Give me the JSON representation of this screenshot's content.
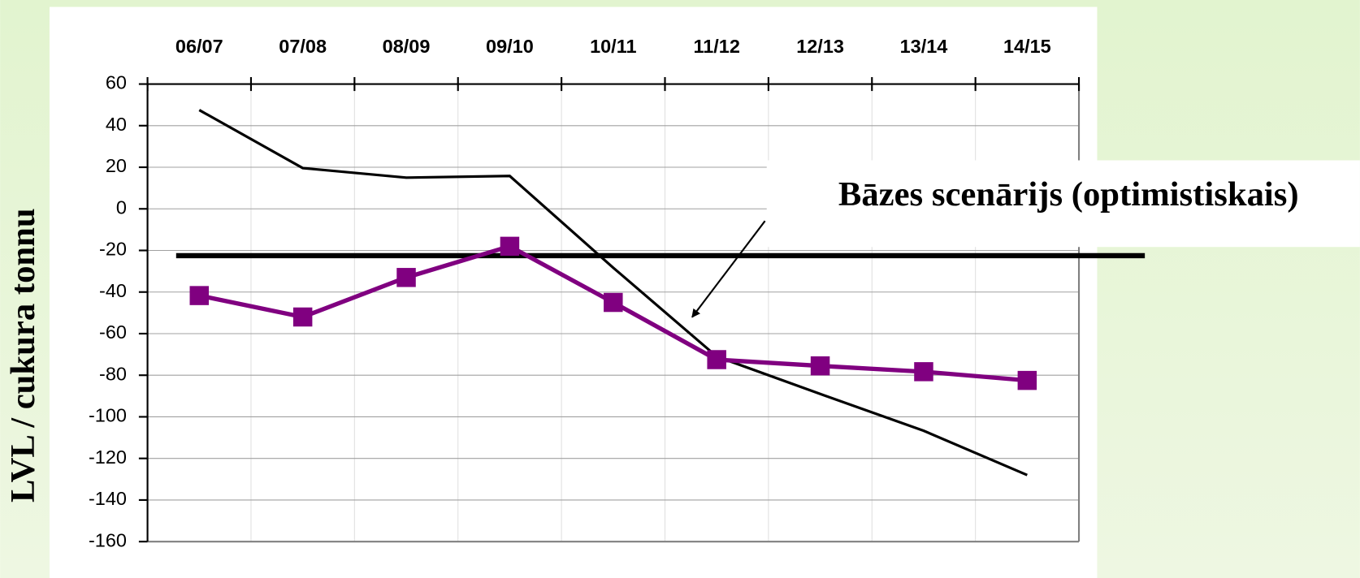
{
  "chart_data": {
    "type": "line",
    "y_label": "LVL / cukura tonnu",
    "annotation": "Bāzes scenārijs (optimistiskais)",
    "categories": [
      "06/07",
      "07/08",
      "08/09",
      "09/10",
      "10/11",
      "11/12",
      "12/13",
      "13/14",
      "14/15"
    ],
    "series": [
      {
        "color": "#000000",
        "marker": "none",
        "values": [
          47.5,
          19.6,
          15,
          15.8,
          -28.3,
          -71,
          -89,
          -106.7,
          -128
        ]
      },
      {
        "color": "#800080",
        "marker": "square",
        "values": [
          -41.7,
          -52,
          -33,
          -18,
          -45,
          -72.5,
          -75.5,
          -78.3,
          -82.5
        ]
      }
    ],
    "reference_line": -22.5,
    "ylim": [
      -160,
      60
    ],
    "yticks": [
      -160,
      -140,
      -120,
      -100,
      -80,
      -60,
      -40,
      -20,
      0,
      20,
      40,
      60
    ],
    "grid": true
  }
}
